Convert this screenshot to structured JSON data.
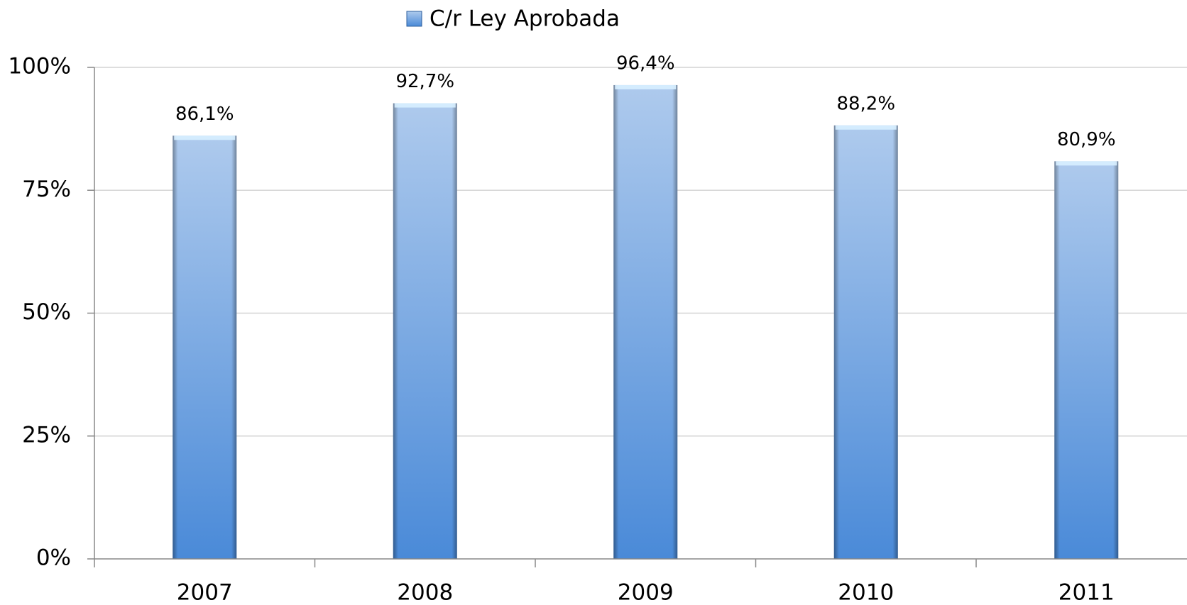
{
  "chart_data": {
    "type": "bar",
    "categories": [
      "2007",
      "2008",
      "2009",
      "2010",
      "2011"
    ],
    "series": [
      {
        "name": "C/r Ley Aprobada",
        "color": "#4a8ad8",
        "values": [
          86.1,
          92.7,
          96.4,
          88.2,
          80.9
        ],
        "value_labels": [
          "86,1%",
          "92,7%",
          "96,4%",
          "88,2%",
          "80,9%"
        ]
      }
    ],
    "ylim": [
      0,
      100
    ],
    "yticks": [
      {
        "value": 0,
        "label": "0%"
      },
      {
        "value": 25,
        "label": "25%"
      },
      {
        "value": 50,
        "label": "50%"
      },
      {
        "value": 75,
        "label": "75%"
      },
      {
        "value": 100,
        "label": "100%"
      }
    ],
    "grid": true,
    "legend": "top"
  }
}
